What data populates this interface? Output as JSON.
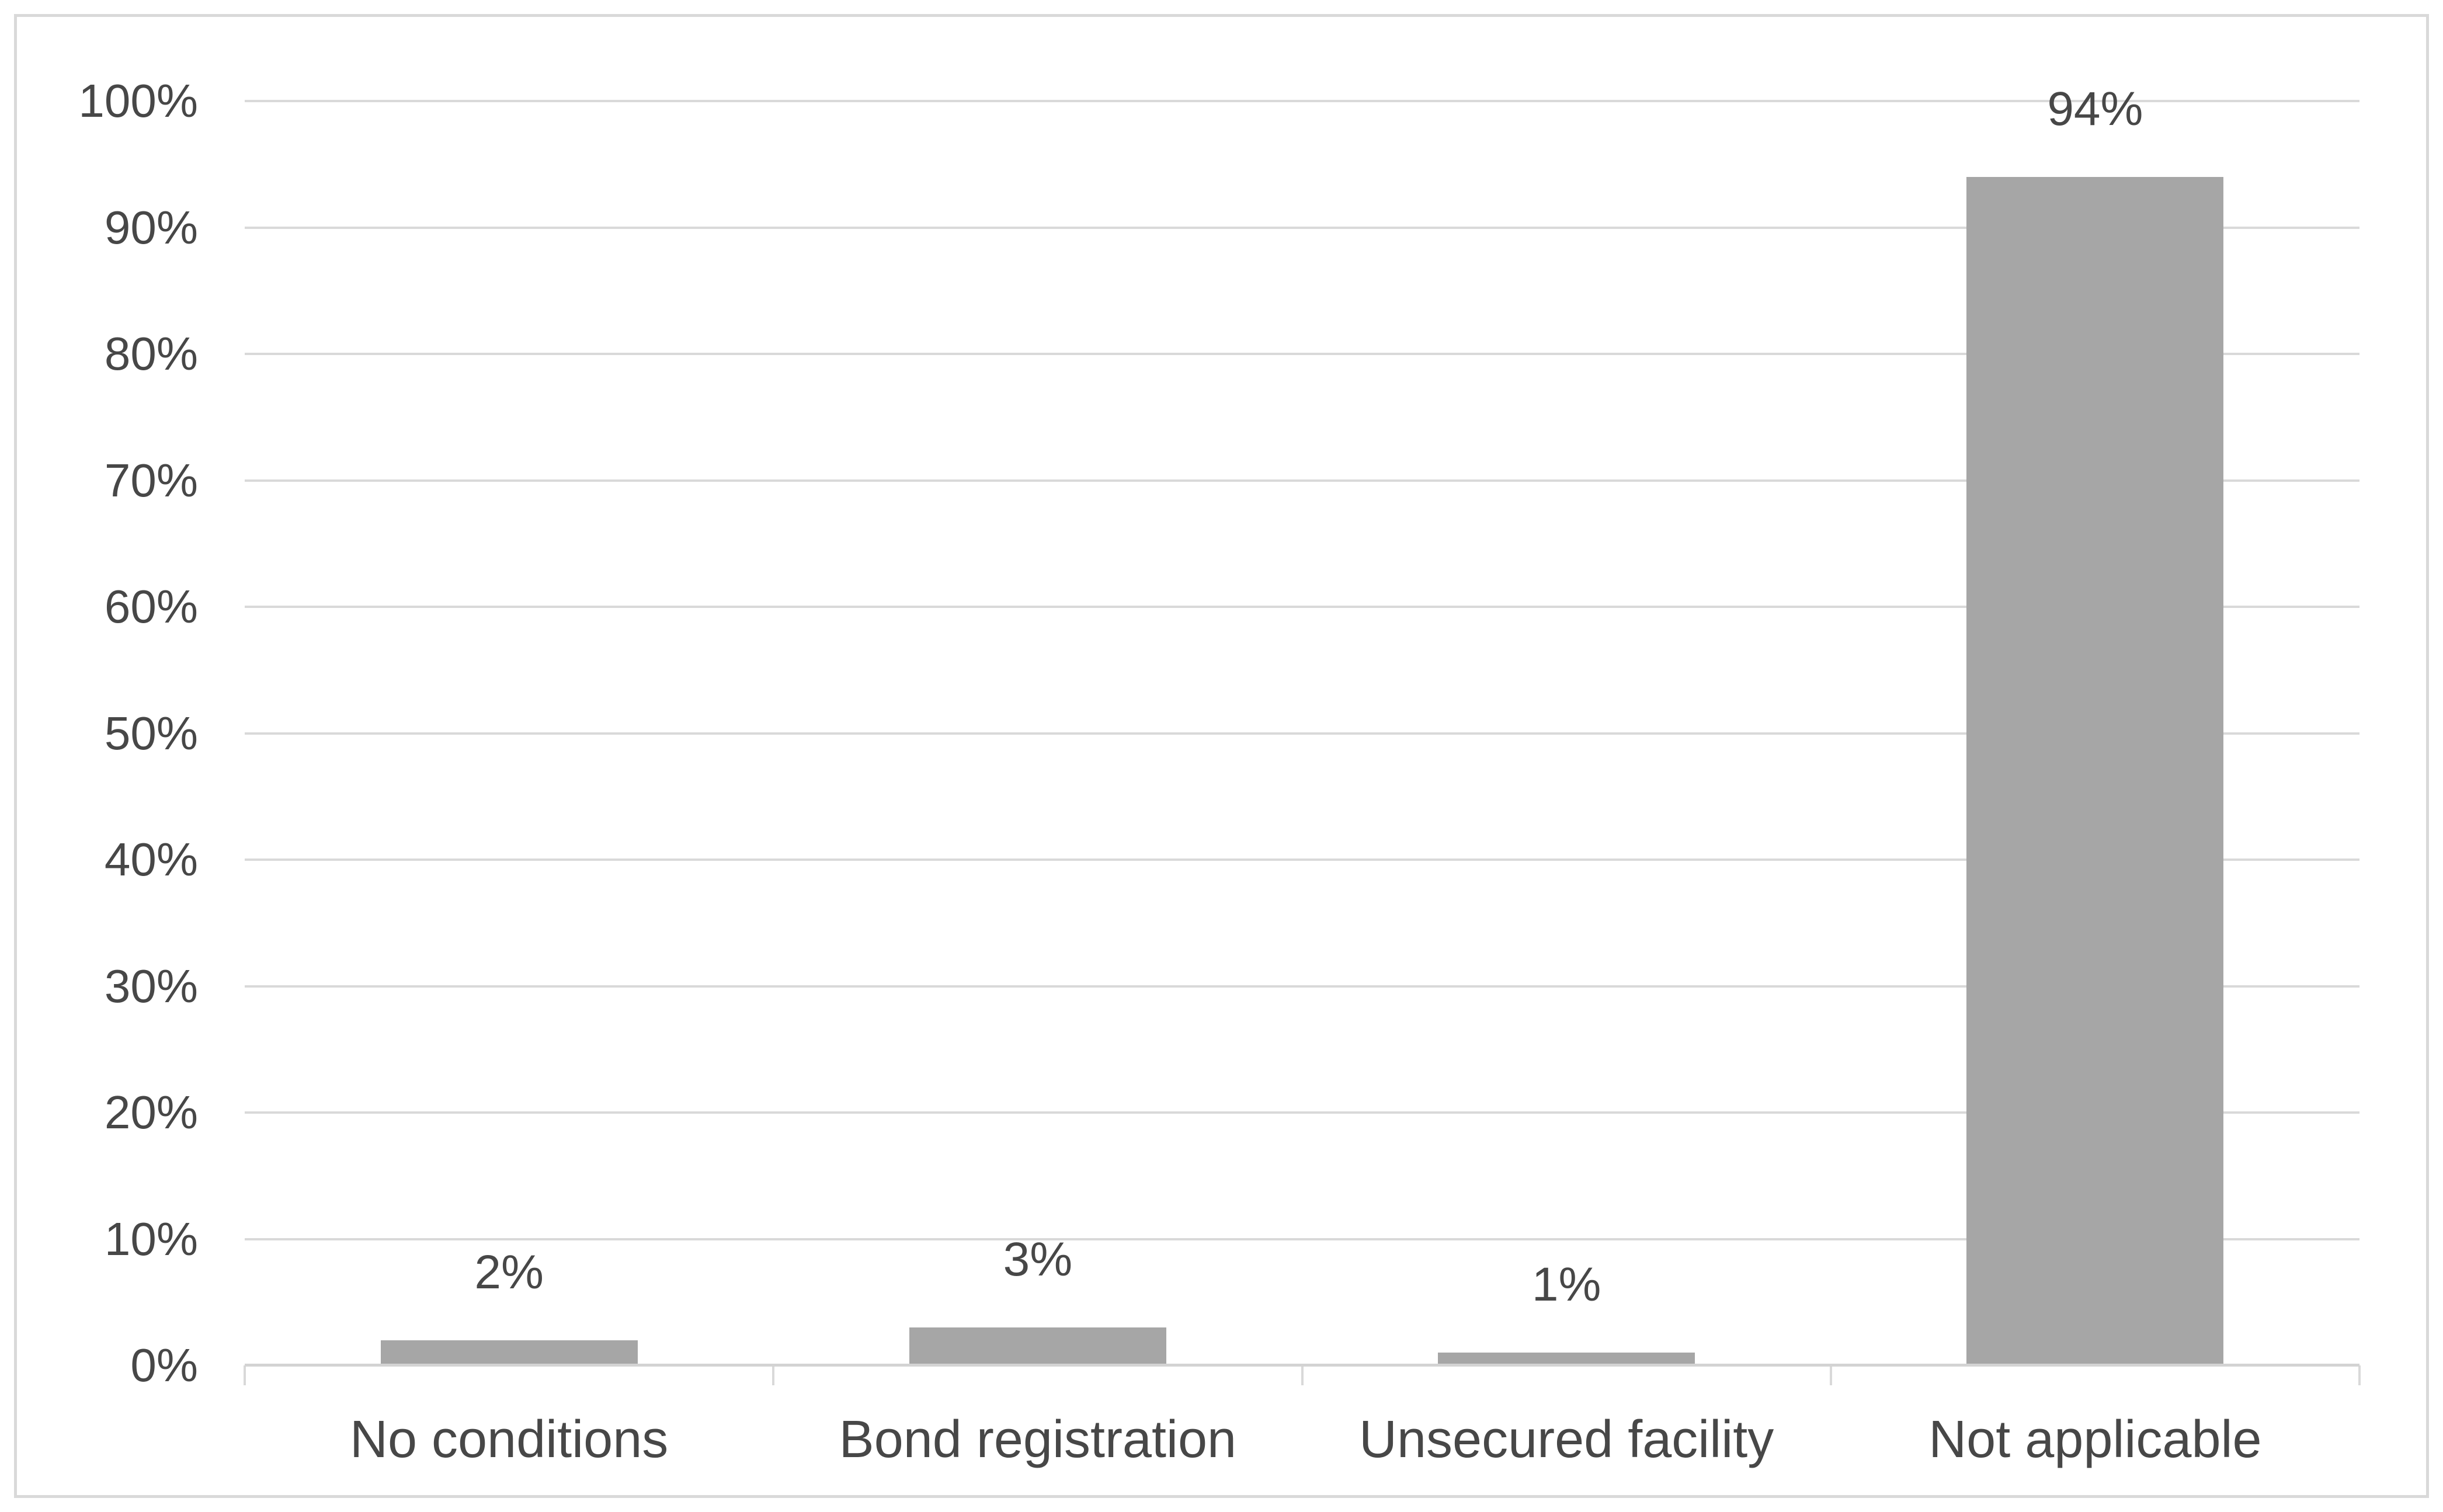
{
  "chart_data": {
    "type": "bar",
    "title": "",
    "xlabel": "",
    "ylabel": "",
    "categories": [
      "No conditions",
      "Bond registration",
      "Unsecured facility",
      "Not applicable"
    ],
    "values": [
      2,
      3,
      1,
      94
    ],
    "data_labels": [
      "2%",
      "3%",
      "1%",
      "94%"
    ],
    "ylim": [
      0,
      100
    ],
    "ytick_step": 10,
    "ytick_labels": [
      "0%",
      "10%",
      "20%",
      "30%",
      "40%",
      "50%",
      "60%",
      "70%",
      "80%",
      "90%",
      "100%"
    ],
    "grid": true,
    "legend": false,
    "colors": {
      "bar_fill": "#a6a6a6",
      "gridline": "#d9d9d9",
      "axis_line": "#d3d3d3",
      "tick_mark": "#d9d9d9",
      "text": "#474747",
      "chart_border": "#d9d9d9",
      "background": "#ffffff"
    }
  }
}
